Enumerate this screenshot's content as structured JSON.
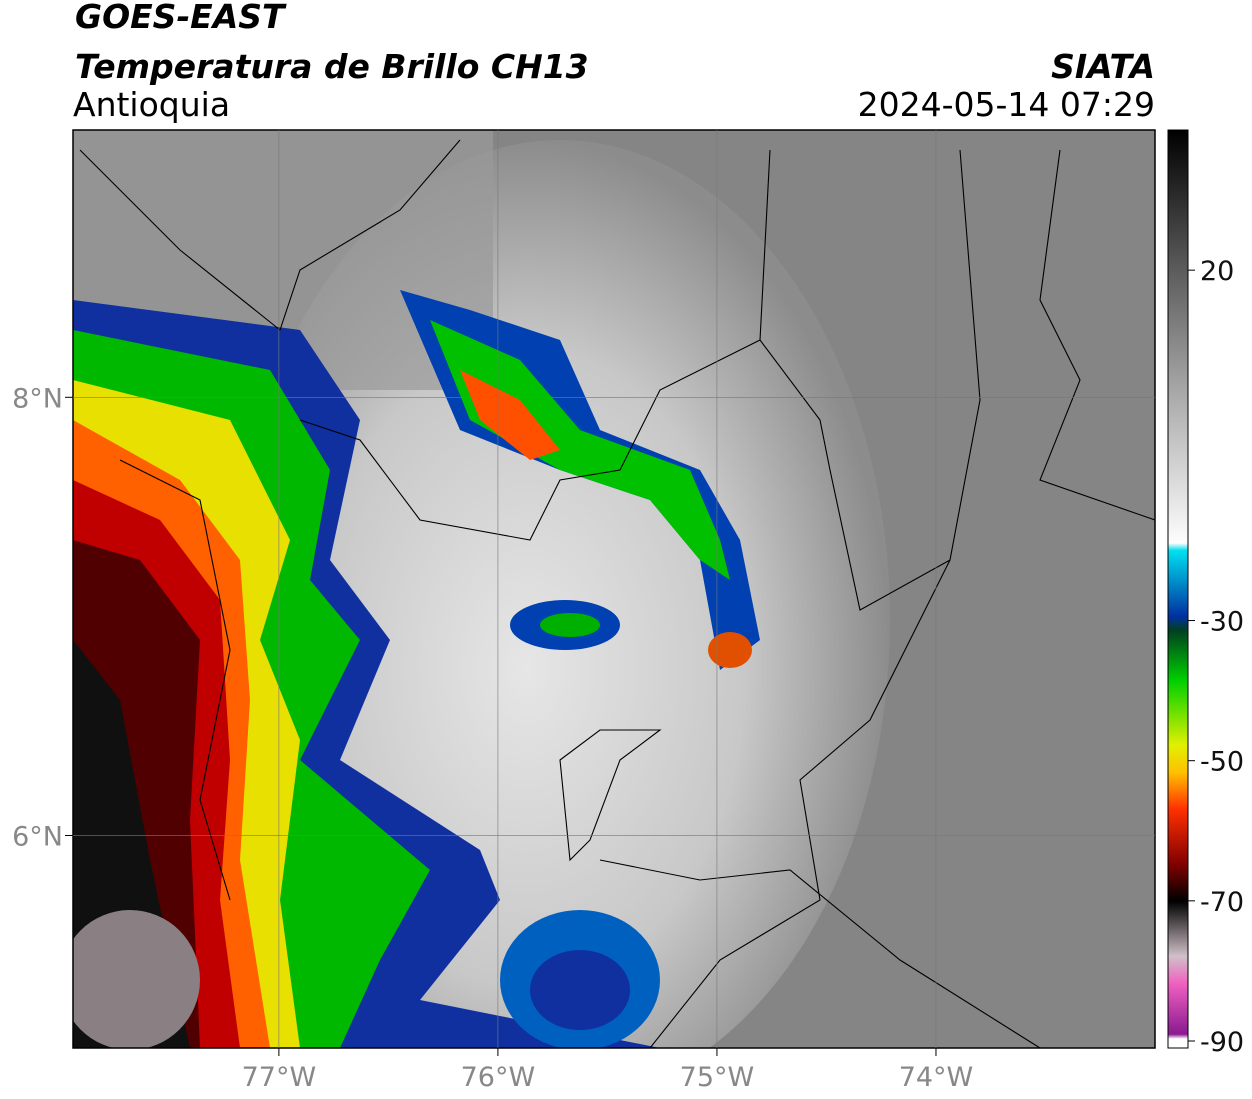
{
  "header": {
    "title": "GOES-EAST",
    "subtitle": "Temperatura de Brillo CH13",
    "region": "Antioquia",
    "source": "SIATA",
    "datetime": "2024-05-14 07:29"
  },
  "map": {
    "xlim": [
      -77.94,
      -73.0
    ],
    "ylim": [
      5.03,
      9.22
    ],
    "xticks": [
      {
        "value": -77,
        "label": "77°W"
      },
      {
        "value": -76,
        "label": "76°W"
      },
      {
        "value": -75,
        "label": "75°W"
      },
      {
        "value": -74,
        "label": "74°W"
      }
    ],
    "yticks": [
      {
        "value": 8,
        "label": "8°N"
      },
      {
        "value": 6,
        "label": "6°N"
      }
    ],
    "grid": true
  },
  "colorbar": {
    "lim": [
      -91,
      40
    ],
    "ticks": [
      20,
      -30,
      -50,
      -70,
      -90
    ]
  }
}
